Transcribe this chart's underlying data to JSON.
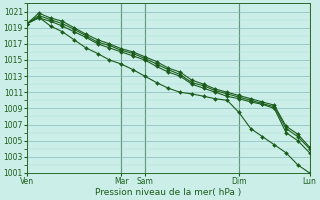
{
  "title": "",
  "xlabel": "Pression niveau de la mer( hPa )",
  "bg_color": "#cceee8",
  "grid_major_color": "#88bbbb",
  "grid_minor_color": "#aadddd",
  "line_color": "#1a5c1a",
  "ylim": [
    1001,
    1022
  ],
  "yticks": [
    1001,
    1003,
    1005,
    1007,
    1009,
    1011,
    1013,
    1015,
    1017,
    1019,
    1021
  ],
  "day_labels": [
    "Ven",
    "Mar",
    "Sam",
    "Dim",
    "Lun"
  ],
  "day_x": [
    0,
    8,
    10,
    18,
    24
  ],
  "n_points": 25,
  "lines": [
    [
      1019.5,
      1020.2,
      1019.8,
      1019.2,
      1018.5,
      1017.8,
      1017.0,
      1016.5,
      1016.0,
      1015.5,
      1015.0,
      1014.2,
      1013.5,
      1013.0,
      1012.0,
      1011.5,
      1011.0,
      1010.5,
      1010.2,
      1009.8,
      1009.5,
      1009.0,
      1006.0,
      1005.0,
      1003.5
    ],
    [
      1019.5,
      1020.5,
      1020.0,
      1019.5,
      1018.8,
      1018.0,
      1017.2,
      1016.8,
      1016.2,
      1015.8,
      1015.2,
      1014.5,
      1013.8,
      1013.2,
      1012.2,
      1011.8,
      1011.2,
      1010.8,
      1010.4,
      1010.0,
      1009.6,
      1009.2,
      1006.5,
      1005.5,
      1004.0
    ],
    [
      1019.5,
      1020.8,
      1020.2,
      1019.8,
      1019.0,
      1018.2,
      1017.5,
      1017.0,
      1016.4,
      1016.0,
      1015.4,
      1014.8,
      1014.0,
      1013.5,
      1012.5,
      1012.0,
      1011.4,
      1011.0,
      1010.6,
      1010.2,
      1009.8,
      1009.4,
      1006.8,
      1005.8,
      1004.2
    ],
    [
      1019.5,
      1020.3,
      1019.2,
      1018.5,
      1017.5,
      1016.5,
      1015.8,
      1015.0,
      1014.5,
      1013.8,
      1013.0,
      1012.2,
      1011.5,
      1011.0,
      1010.8,
      1010.5,
      1010.2,
      1010.0,
      1008.5,
      1006.5,
      1005.5,
      1004.5,
      1003.5,
      1002.0,
      1001.0
    ]
  ],
  "marker": "D",
  "markersize": 2.0,
  "linewidth": 0.8,
  "xlabel_fontsize": 6.5,
  "tick_fontsize": 5.5
}
